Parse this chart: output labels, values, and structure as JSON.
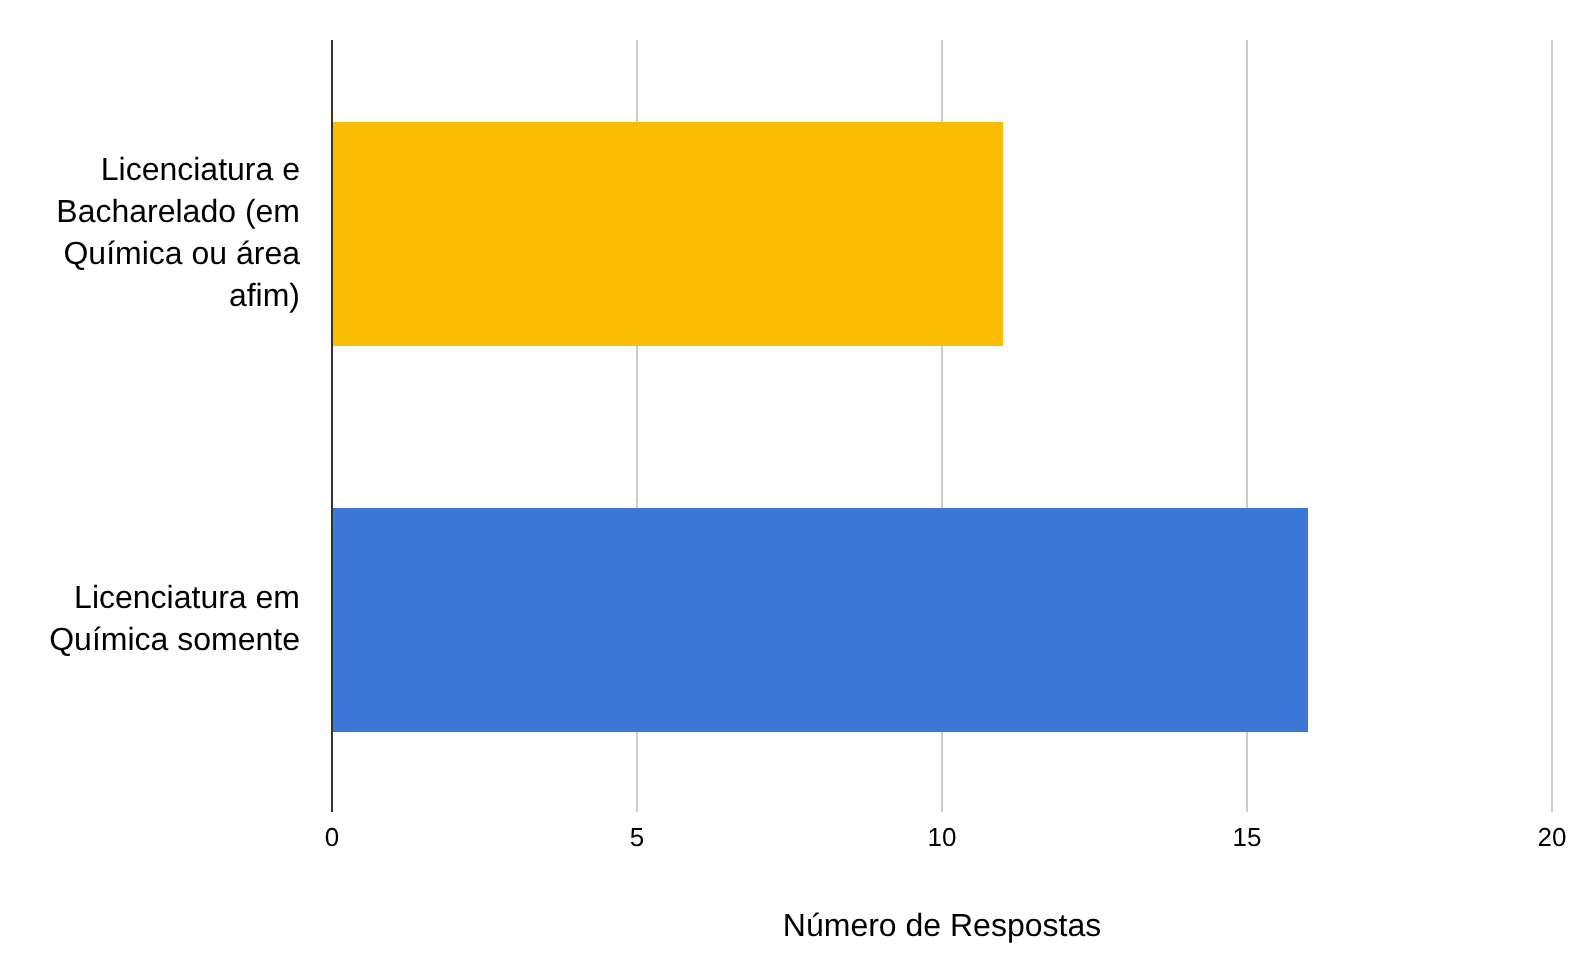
{
  "chart_data": {
    "type": "bar",
    "orientation": "horizontal",
    "xlabel": "Número de Respostas",
    "categories": [
      "Licenciatura e Bacharelado (em Química ou área afim)",
      "Licenciatura em Química somente"
    ],
    "values": [
      11,
      16
    ],
    "colors": [
      "#fbbc04",
      "#3c78d8"
    ],
    "xlim": [
      0,
      20
    ],
    "xticks": [
      0,
      5,
      10,
      15,
      20
    ],
    "grid": "x"
  }
}
